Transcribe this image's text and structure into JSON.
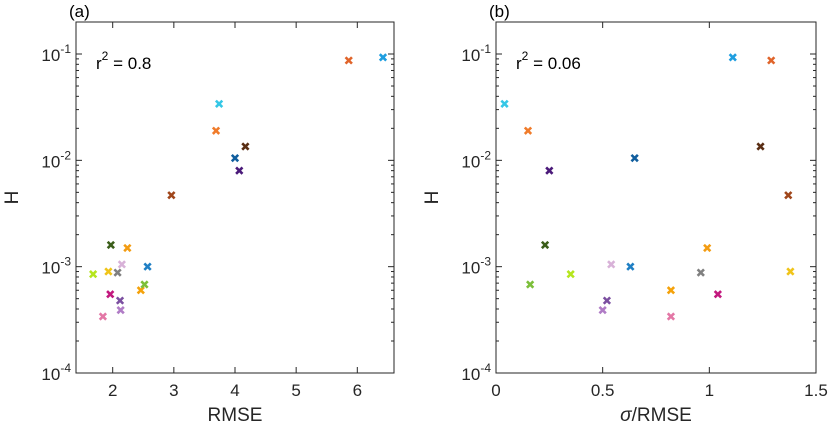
{
  "chart_data": [
    {
      "type": "scatter",
      "panel_label": "(a)",
      "xlabel": "RMSE",
      "ylabel": "H",
      "xscale": "linear",
      "yscale": "log",
      "xlim": [
        1.4,
        6.6
      ],
      "ylim": [
        0.0001,
        0.2
      ],
      "xticks": [
        2,
        3,
        4,
        5,
        6
      ],
      "xtick_labels": [
        "2",
        "3",
        "4",
        "5",
        "6"
      ],
      "yticks": [
        0.0001,
        0.001,
        0.01,
        0.1
      ],
      "ytick_labels": [
        {
          "base": "10",
          "exp": "-4"
        },
        {
          "base": "10",
          "exp": "-3"
        },
        {
          "base": "10",
          "exp": "-2"
        },
        {
          "base": "10",
          "exp": "-1"
        }
      ],
      "annotation": {
        "prefix": "r",
        "sup": "2",
        "suffix": " = 0.8"
      },
      "points": [
        {
          "x": 1.68,
          "y": 0.00085,
          "color": "#b5e61d"
        },
        {
          "x": 1.84,
          "y": 0.00034,
          "color": "#e377a6"
        },
        {
          "x": 1.93,
          "y": 0.0009,
          "color": "#f0c419"
        },
        {
          "x": 1.96,
          "y": 0.00055,
          "color": "#c2187e"
        },
        {
          "x": 1.97,
          "y": 0.0016,
          "color": "#3b5e1a"
        },
        {
          "x": 2.08,
          "y": 0.00088,
          "color": "#808080"
        },
        {
          "x": 2.12,
          "y": 0.00048,
          "color": "#7b4fa0"
        },
        {
          "x": 2.13,
          "y": 0.00039,
          "color": "#b07cc6"
        },
        {
          "x": 2.15,
          "y": 0.00105,
          "color": "#d8b2d8"
        },
        {
          "x": 2.24,
          "y": 0.0015,
          "color": "#f39c12"
        },
        {
          "x": 2.46,
          "y": 0.0006,
          "color": "#f5a20a"
        },
        {
          "x": 2.52,
          "y": 0.00068,
          "color": "#7cbf3a"
        },
        {
          "x": 2.57,
          "y": 0.001,
          "color": "#1f7fc4"
        },
        {
          "x": 2.96,
          "y": 0.0047,
          "color": "#a0461b"
        },
        {
          "x": 3.69,
          "y": 0.019,
          "color": "#f07b2a"
        },
        {
          "x": 3.74,
          "y": 0.034,
          "color": "#35c7e6"
        },
        {
          "x": 4.0,
          "y": 0.0105,
          "color": "#105e9e"
        },
        {
          "x": 4.07,
          "y": 0.008,
          "color": "#4b1a7a"
        },
        {
          "x": 4.17,
          "y": 0.0135,
          "color": "#5a2e14"
        },
        {
          "x": 5.86,
          "y": 0.087,
          "color": "#e0642a"
        },
        {
          "x": 6.42,
          "y": 0.093,
          "color": "#1f9ee0"
        }
      ]
    },
    {
      "type": "scatter",
      "panel_label": "(b)",
      "xlabel": "σ/RMSE",
      "ylabel": "H",
      "xscale": "linear",
      "yscale": "log",
      "xlim": [
        0,
        1.5
      ],
      "ylim": [
        0.0001,
        0.2
      ],
      "xticks": [
        0,
        0.5,
        1,
        1.5
      ],
      "xtick_labels": [
        "0",
        "0.5",
        "1",
        "1.5"
      ],
      "yticks": [
        0.0001,
        0.001,
        0.01,
        0.1
      ],
      "ytick_labels": [
        {
          "base": "10",
          "exp": "-4"
        },
        {
          "base": "10",
          "exp": "-3"
        },
        {
          "base": "10",
          "exp": "-2"
        },
        {
          "base": "10",
          "exp": "-1"
        }
      ],
      "annotation": {
        "prefix": "r",
        "sup": "2",
        "suffix": " = 0.06"
      },
      "points": [
        {
          "x": 0.04,
          "y": 0.034,
          "color": "#35c7e6"
        },
        {
          "x": 0.15,
          "y": 0.019,
          "color": "#f07b2a"
        },
        {
          "x": 0.16,
          "y": 0.00068,
          "color": "#7cbf3a"
        },
        {
          "x": 0.23,
          "y": 0.0016,
          "color": "#3b5e1a"
        },
        {
          "x": 0.25,
          "y": 0.008,
          "color": "#4b1a7a"
        },
        {
          "x": 0.35,
          "y": 0.00085,
          "color": "#b5e61d"
        },
        {
          "x": 0.5,
          "y": 0.00039,
          "color": "#b07cc6"
        },
        {
          "x": 0.52,
          "y": 0.00048,
          "color": "#7b4fa0"
        },
        {
          "x": 0.54,
          "y": 0.00105,
          "color": "#d8b2d8"
        },
        {
          "x": 0.63,
          "y": 0.001,
          "color": "#1f7fc4"
        },
        {
          "x": 0.65,
          "y": 0.0105,
          "color": "#105e9e"
        },
        {
          "x": 0.82,
          "y": 0.00034,
          "color": "#e377a6"
        },
        {
          "x": 0.82,
          "y": 0.0006,
          "color": "#f5a20a"
        },
        {
          "x": 0.96,
          "y": 0.00088,
          "color": "#808080"
        },
        {
          "x": 0.99,
          "y": 0.0015,
          "color": "#f39c12"
        },
        {
          "x": 1.04,
          "y": 0.00055,
          "color": "#c2187e"
        },
        {
          "x": 1.11,
          "y": 0.093,
          "color": "#1f9ee0"
        },
        {
          "x": 1.24,
          "y": 0.0135,
          "color": "#5a2e14"
        },
        {
          "x": 1.29,
          "y": 0.087,
          "color": "#e0642a"
        },
        {
          "x": 1.37,
          "y": 0.0047,
          "color": "#a0461b"
        },
        {
          "x": 1.38,
          "y": 0.0009,
          "color": "#f0c419"
        }
      ]
    }
  ]
}
